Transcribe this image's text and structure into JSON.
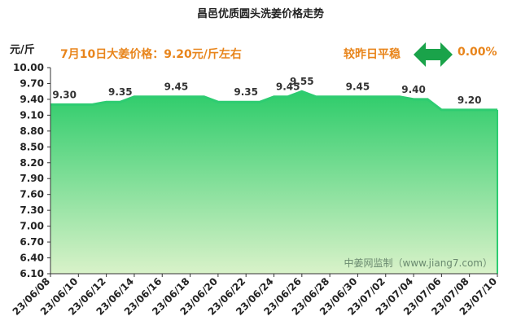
{
  "chart_data": {
    "type": "area",
    "title": "昌邑优质圆头洗姜价格走势",
    "ylabel": "元/斤",
    "headline": "7月10日大姜价格：9.20元/斤左右",
    "compare_label": "较昨日平稳",
    "change_value": "0.00%",
    "watermark": "中姜网监制（www.jiang7.com）",
    "ylim": [
      6.1,
      10.0
    ],
    "yticks": [
      "10.00",
      "9.70",
      "9.40",
      "9.10",
      "8.80",
      "8.50",
      "8.20",
      "7.90",
      "7.60",
      "7.30",
      "7.00",
      "6.70",
      "6.40",
      "6.10"
    ],
    "xticks": [
      "23/06/08",
      "23/06/10",
      "23/06/12",
      "23/06/14",
      "23/06/16",
      "23/06/18",
      "23/06/20",
      "23/06/22",
      "23/06/24",
      "23/06/26",
      "23/06/28",
      "23/06/30",
      "23/07/02",
      "23/07/04",
      "23/07/06",
      "23/07/08",
      "23/07/10"
    ],
    "x": [
      "23/06/08",
      "23/06/09",
      "23/06/10",
      "23/06/11",
      "23/06/12",
      "23/06/13",
      "23/06/14",
      "23/06/15",
      "23/06/16",
      "23/06/17",
      "23/06/18",
      "23/06/19",
      "23/06/20",
      "23/06/21",
      "23/06/22",
      "23/06/23",
      "23/06/24",
      "23/06/25",
      "23/06/26",
      "23/06/27",
      "23/06/28",
      "23/06/29",
      "23/06/30",
      "23/07/01",
      "23/07/02",
      "23/07/03",
      "23/07/04",
      "23/07/05",
      "23/07/06",
      "23/07/07",
      "23/07/08",
      "23/07/09",
      "23/07/10"
    ],
    "values": [
      9.3,
      9.3,
      9.3,
      9.3,
      9.35,
      9.35,
      9.45,
      9.45,
      9.45,
      9.45,
      9.45,
      9.45,
      9.35,
      9.35,
      9.35,
      9.35,
      9.45,
      9.45,
      9.55,
      9.45,
      9.45,
      9.45,
      9.45,
      9.45,
      9.45,
      9.45,
      9.4,
      9.4,
      9.2,
      9.2,
      9.2,
      9.2,
      9.2
    ],
    "data_labels": [
      {
        "x": "23/06/09",
        "text": "9.30"
      },
      {
        "x": "23/06/13",
        "text": "9.35"
      },
      {
        "x": "23/06/17",
        "text": "9.45"
      },
      {
        "x": "23/06/22",
        "text": "9.35"
      },
      {
        "x": "23/06/25",
        "text": "9.45"
      },
      {
        "x": "23/06/26",
        "text": "9.55"
      },
      {
        "x": "23/06/30",
        "text": "9.45"
      },
      {
        "x": "23/07/04",
        "text": "9.40"
      },
      {
        "x": "23/07/08",
        "text": "9.20"
      }
    ],
    "grid": false,
    "colors": {
      "line": "#2ecc71",
      "fill_top": "#2dcc6a",
      "fill_bottom": "#d9f2c9",
      "axis": "#333333",
      "accent": "#e8851c",
      "arrow": "#1aa34a"
    }
  }
}
